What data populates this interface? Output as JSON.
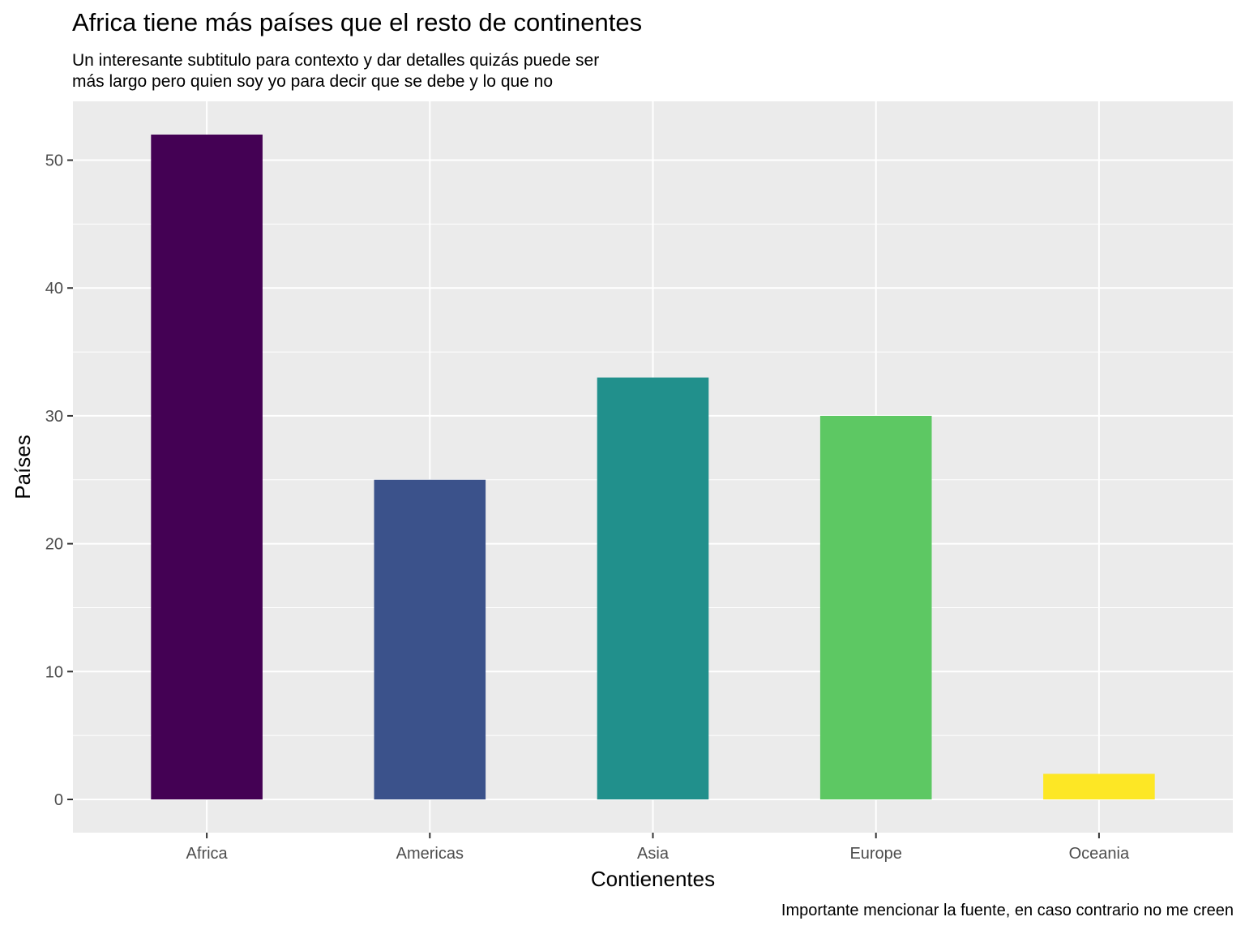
{
  "chart_data": {
    "type": "bar",
    "title": "Africa tiene más países que el resto de continentes",
    "subtitle_lines": [
      "Un interesante subtitulo para contexto y dar detalles quizás puede ser",
      "más largo pero quien soy yo para decir que se debe y lo que no"
    ],
    "caption": "Importante mencionar la fuente, en caso contrario no me creen",
    "xlabel": "Contienentes",
    "ylabel": "Países",
    "categories": [
      "Africa",
      "Americas",
      "Asia",
      "Europe",
      "Oceania"
    ],
    "values": [
      52,
      25,
      33,
      30,
      2
    ],
    "colors": [
      "#440154",
      "#3B528B",
      "#21908C",
      "#5DC863",
      "#FDE725"
    ],
    "ylim": [
      -2.6,
      54.6
    ],
    "yticks": [
      0,
      10,
      20,
      30,
      40,
      50
    ],
    "yticks_minor": [
      5,
      15,
      25,
      35,
      45
    ],
    "grid": true,
    "legend": "none",
    "panel_background": "#EBEBEB",
    "grid_color": "#FFFFFF"
  }
}
